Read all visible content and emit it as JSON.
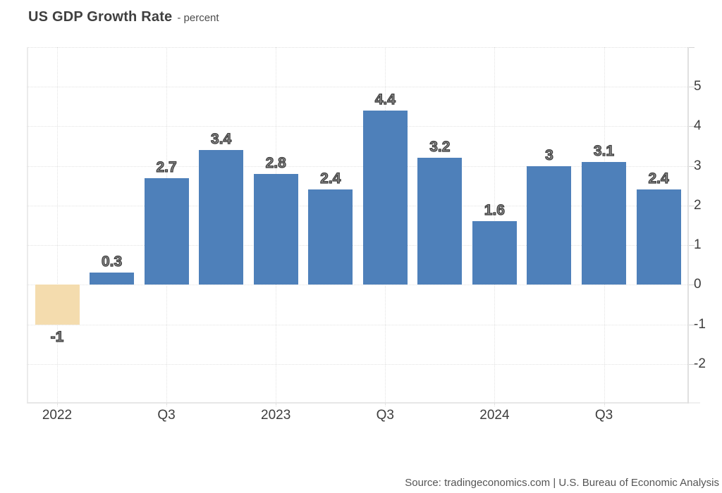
{
  "header": {
    "title": "US GDP Growth Rate",
    "subtitle": "- percent"
  },
  "footer": {
    "source": "Source: tradingeconomics.com | U.S. Bureau of Economic Analysis"
  },
  "chart_data": {
    "type": "bar",
    "title": "US GDP Growth Rate",
    "subtitle": "- percent",
    "ylabel": "percent",
    "values": [
      -1,
      0.3,
      2.7,
      3.4,
      2.8,
      2.4,
      4.4,
      3.2,
      1.6,
      3,
      3.1,
      2.4
    ],
    "bar_labels": [
      "-1",
      "0.3",
      "2.7",
      "3.4",
      "2.8",
      "2.4",
      "4.4",
      "3.2",
      "1.6",
      "3",
      "3.1",
      "2.4"
    ],
    "x_ticks": [
      {
        "index": 0,
        "label": "2022"
      },
      {
        "index": 2,
        "label": "Q3"
      },
      {
        "index": 4,
        "label": "2023"
      },
      {
        "index": 6,
        "label": "Q3"
      },
      {
        "index": 8,
        "label": "2024"
      },
      {
        "index": 10,
        "label": "Q3"
      }
    ],
    "y_ticks": [
      -2,
      -1,
      0,
      1,
      2,
      3,
      4,
      5
    ],
    "ylim": [
      -3,
      6
    ],
    "y_axis_side": "right",
    "grid": "dotted",
    "legend": "none",
    "colors": {
      "positive_bar": "#4e80ba",
      "negative_bar": "#f4dcae",
      "grid_line": "#e3e3e3",
      "axis_line": "#e0e0e0",
      "tick_label": "#3d3d3d",
      "data_label_fill": "#8a8a8a",
      "data_label_stroke": "#3b3b3b",
      "title_text": "#3f3f3f",
      "source_text": "#555555"
    }
  }
}
